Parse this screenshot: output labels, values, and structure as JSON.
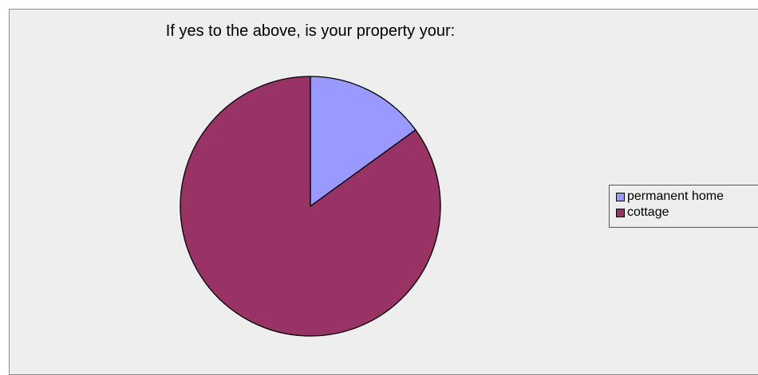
{
  "chart_data": {
    "type": "pie",
    "title": "If yes to the above, is your property your:",
    "categories": [
      "permanent home",
      "cottage"
    ],
    "values": [
      15,
      85
    ],
    "colors": [
      "#9999ff",
      "#993366"
    ],
    "legend_position": "right",
    "start_angle": "12 o'clock, clockwise"
  }
}
